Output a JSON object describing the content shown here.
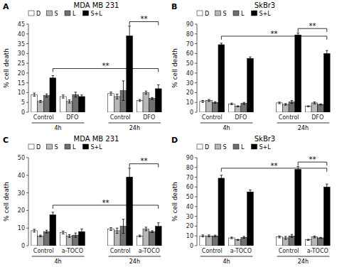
{
  "chart_data": [
    {
      "type": "bar",
      "title": "MDA MB 231",
      "ylabel": "% cell death",
      "categories": [
        "Control",
        "DFO",
        "Control",
        "DFO"
      ],
      "series": [
        {
          "name": "D",
          "color": "white",
          "values": [
            9,
            8,
            9.5,
            6
          ],
          "errors": [
            0.8,
            0.8,
            0.8,
            0.5
          ]
        },
        {
          "name": "S",
          "color": "#b8b8b8",
          "values": [
            5.5,
            5.5,
            8,
            10
          ],
          "errors": [
            0.5,
            0.8,
            1.2,
            0.8
          ]
        },
        {
          "name": "L",
          "color": "#707070",
          "values": [
            8.5,
            9,
            11,
            7
          ],
          "errors": [
            0.8,
            1.2,
            5,
            0.5
          ]
        },
        {
          "name": "S+L",
          "color": "black",
          "values": [
            17.5,
            8,
            39,
            12
          ],
          "errors": [
            1.2,
            0.8,
            5,
            2
          ]
        }
      ],
      "ylim": [
        0,
        45
      ],
      "yticks": [
        0,
        5,
        10,
        15,
        20,
        25,
        30,
        35,
        40,
        45
      ],
      "grid": false,
      "legend": "upper left",
      "annotations": [
        "A",
        "4h",
        "24h",
        "**",
        "**"
      ]
    },
    {
      "type": "bar",
      "title": "SkBr3",
      "ylabel": "% cell death",
      "categories": [
        "Control",
        "DFO",
        "Control",
        "DFO"
      ],
      "series": [
        {
          "name": "D",
          "color": "white",
          "values": [
            11,
            8.5,
            9.5,
            6
          ],
          "errors": [
            1,
            0.8,
            0.8,
            0.5
          ]
        },
        {
          "name": "S",
          "color": "#b8b8b8",
          "values": [
            12,
            6,
            8,
            9.5
          ],
          "errors": [
            1,
            0.5,
            0.8,
            1
          ]
        },
        {
          "name": "L",
          "color": "#707070",
          "values": [
            10,
            9,
            10.5,
            8
          ],
          "errors": [
            0.8,
            1,
            1.5,
            0.5
          ]
        },
        {
          "name": "S+L",
          "color": "black",
          "values": [
            69,
            55,
            79,
            60
          ],
          "errors": [
            1.5,
            1.5,
            2,
            3
          ]
        }
      ],
      "ylim": [
        0,
        90
      ],
      "yticks": [
        0,
        10,
        20,
        30,
        40,
        50,
        60,
        70,
        80,
        90
      ],
      "grid": false,
      "legend": "upper left",
      "annotations": [
        "B",
        "4h",
        "24h",
        "**",
        "**"
      ]
    },
    {
      "type": "bar",
      "title": "MDA MB 231",
      "ylabel": "% cell death",
      "categories": [
        "Control",
        "a-TOCO",
        "Control",
        "a-TOCO"
      ],
      "series": [
        {
          "name": "D",
          "color": "white",
          "values": [
            8.5,
            7.5,
            9.5,
            5.5
          ],
          "errors": [
            0.8,
            0.8,
            0.8,
            0.5
          ]
        },
        {
          "name": "S",
          "color": "#b8b8b8",
          "values": [
            5.5,
            5.5,
            8.5,
            9.5
          ],
          "errors": [
            0.5,
            0.8,
            1.5,
            1.0
          ]
        },
        {
          "name": "L",
          "color": "#707070",
          "values": [
            8,
            6,
            11,
            8
          ],
          "errors": [
            0.8,
            1.2,
            4,
            0.5
          ]
        },
        {
          "name": "S+L",
          "color": "black",
          "values": [
            17.5,
            8,
            39,
            11
          ],
          "errors": [
            1.5,
            1.5,
            5,
            2
          ]
        }
      ],
      "ylim": [
        0,
        50
      ],
      "yticks": [
        0,
        10,
        20,
        30,
        40,
        50
      ],
      "grid": false,
      "legend": "upper left",
      "annotations": [
        "C",
        "4h",
        "24h",
        "**",
        "**"
      ]
    },
    {
      "type": "bar",
      "title": "SkBr3",
      "ylabel": "% cell death",
      "categories": [
        "Control",
        "a-TOCO",
        "Control",
        "a-TOCO"
      ],
      "series": [
        {
          "name": "D",
          "color": "white",
          "values": [
            10,
            8,
            9,
            6
          ],
          "errors": [
            1,
            0.8,
            1,
            0.5
          ]
        },
        {
          "name": "S",
          "color": "#b8b8b8",
          "values": [
            10,
            6,
            8,
            9
          ],
          "errors": [
            1,
            0.5,
            1.5,
            1
          ]
        },
        {
          "name": "L",
          "color": "#707070",
          "values": [
            10,
            8.5,
            10,
            8
          ],
          "errors": [
            0.8,
            1,
            1.5,
            0.5
          ]
        },
        {
          "name": "S+L",
          "color": "black",
          "values": [
            69,
            55,
            78,
            60
          ],
          "errors": [
            3,
            2,
            3,
            3
          ]
        }
      ],
      "ylim": [
        0,
        90
      ],
      "yticks": [
        0,
        10,
        20,
        30,
        40,
        50,
        60,
        70,
        80,
        90
      ],
      "grid": false,
      "legend": "upper left",
      "annotations": [
        "D",
        "4h",
        "24h",
        "**",
        "**"
      ]
    }
  ]
}
